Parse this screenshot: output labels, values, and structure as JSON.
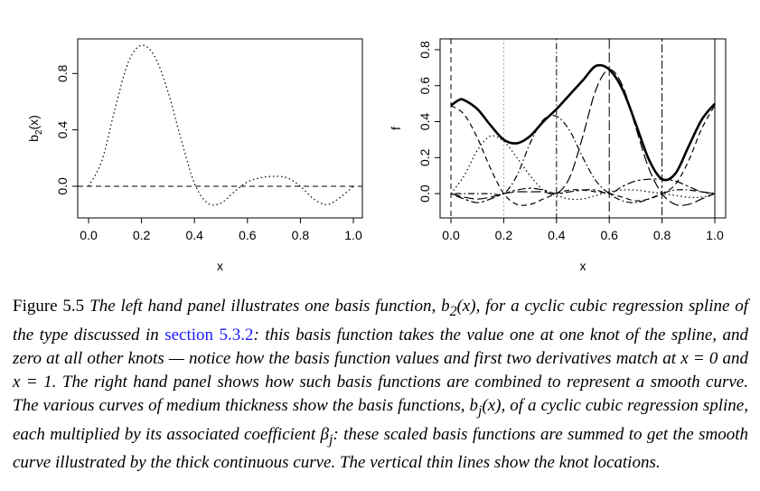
{
  "chart_data": [
    {
      "type": "line",
      "panel": "left",
      "xlabel": "x",
      "ylabel": "b2(x)",
      "xlim": [
        0,
        1
      ],
      "ylim": [
        -0.18,
        1.02
      ],
      "xticks": [
        "0.0",
        "0.2",
        "0.4",
        "0.6",
        "0.8",
        "1.0"
      ],
      "yticks": [
        "0.0",
        "0.4",
        "0.8"
      ],
      "reference_line": {
        "y": 0,
        "style": "dashed"
      },
      "series": [
        {
          "style": "dotted",
          "x": [
            0,
            0.05,
            0.1,
            0.15,
            0.2,
            0.25,
            0.3,
            0.35,
            0.4,
            0.45,
            0.5,
            0.55,
            0.6,
            0.65,
            0.7,
            0.75,
            0.8,
            0.85,
            0.9,
            0.95,
            1.0
          ],
          "y": [
            0,
            0.18,
            0.55,
            0.88,
            1.0,
            0.92,
            0.67,
            0.33,
            0.02,
            -0.12,
            -0.12,
            -0.04,
            0.03,
            0.06,
            0.07,
            0.06,
            0.0,
            -0.09,
            -0.13,
            -0.08,
            0
          ]
        }
      ]
    },
    {
      "type": "line",
      "panel": "right",
      "xlabel": "x",
      "ylabel": "f",
      "xlim": [
        0,
        1
      ],
      "ylim": [
        -0.1,
        0.84
      ],
      "xticks": [
        "0.0",
        "0.2",
        "0.4",
        "0.6",
        "0.8",
        "1.0"
      ],
      "yticks": [
        "0.0",
        "0.2",
        "0.4",
        "0.6",
        "0.8"
      ],
      "knots": [
        {
          "x": 0.0,
          "style": "dashed"
        },
        {
          "x": 0.2,
          "style": "dotted"
        },
        {
          "x": 0.4,
          "style": "dotdash"
        },
        {
          "x": 0.6,
          "style": "longdash"
        },
        {
          "x": 0.8,
          "style": "twodash"
        },
        {
          "x": 1.0,
          "style": "solid"
        }
      ],
      "series": [
        {
          "style": "dashed",
          "x": [
            0,
            0.05,
            0.1,
            0.15,
            0.2,
            0.25,
            0.3,
            0.35,
            0.4,
            0.45,
            0.5,
            0.55,
            0.6,
            0.65,
            0.7,
            0.75,
            0.8,
            0.85,
            0.9,
            0.95,
            1.0
          ],
          "y": [
            0.49,
            0.44,
            0.31,
            0.14,
            0.0,
            -0.06,
            -0.06,
            -0.03,
            0.0,
            0.02,
            0.02,
            0.01,
            0.0,
            -0.02,
            -0.04,
            -0.03,
            0.0,
            0.05,
            0.18,
            0.36,
            0.49
          ]
        },
        {
          "style": "dotted",
          "x": [
            0,
            0.05,
            0.1,
            0.15,
            0.2,
            0.25,
            0.3,
            0.35,
            0.4,
            0.45,
            0.5,
            0.55,
            0.6,
            0.65,
            0.7,
            0.75,
            0.8,
            0.85,
            0.9,
            0.95,
            1.0
          ],
          "y": [
            0.0,
            0.1,
            0.24,
            0.32,
            0.29,
            0.2,
            0.1,
            0.02,
            -0.01,
            -0.03,
            -0.03,
            -0.01,
            0.01,
            0.02,
            0.02,
            0.01,
            0.0,
            -0.01,
            -0.02,
            -0.02,
            0.0
          ]
        },
        {
          "style": "dotdash",
          "x": [
            0,
            0.05,
            0.1,
            0.15,
            0.2,
            0.25,
            0.3,
            0.35,
            0.4,
            0.45,
            0.5,
            0.55,
            0.6,
            0.65,
            0.7,
            0.75,
            0.8,
            0.85,
            0.9,
            0.95,
            1.0
          ],
          "y": [
            0.0,
            0.0,
            0.0,
            0.0,
            0.0,
            0.1,
            0.28,
            0.41,
            0.43,
            0.35,
            0.2,
            0.07,
            0.0,
            -0.04,
            -0.05,
            -0.03,
            0.0,
            0.02,
            0.02,
            0.01,
            0.0
          ]
        },
        {
          "style": "longdash",
          "x": [
            0,
            0.05,
            0.1,
            0.15,
            0.2,
            0.25,
            0.3,
            0.35,
            0.4,
            0.45,
            0.5,
            0.55,
            0.6,
            0.65,
            0.7,
            0.75,
            0.8,
            0.85,
            0.9,
            0.95,
            1.0
          ],
          "y": [
            0.0,
            -0.02,
            -0.03,
            -0.02,
            0.0,
            0.01,
            0.01,
            0.01,
            0.0,
            0.09,
            0.32,
            0.58,
            0.69,
            0.6,
            0.37,
            0.14,
            0.0,
            -0.06,
            -0.06,
            -0.03,
            0.0
          ]
        },
        {
          "style": "twodash",
          "x": [
            0,
            0.05,
            0.1,
            0.15,
            0.2,
            0.25,
            0.3,
            0.35,
            0.4,
            0.45,
            0.5,
            0.55,
            0.6,
            0.65,
            0.7,
            0.75,
            0.8,
            0.85,
            0.9,
            0.95,
            1.0
          ],
          "y": [
            0.0,
            -0.03,
            -0.05,
            -0.03,
            0.0,
            0.02,
            0.03,
            0.02,
            0.0,
            0.01,
            0.02,
            0.02,
            0.0,
            0.04,
            0.07,
            0.08,
            0.08,
            0.07,
            0.04,
            0.01,
            0.0
          ]
        },
        {
          "style": "thick-solid",
          "x": [
            0,
            0.03,
            0.05,
            0.1,
            0.15,
            0.2,
            0.25,
            0.3,
            0.35,
            0.4,
            0.45,
            0.5,
            0.55,
            0.6,
            0.65,
            0.7,
            0.75,
            0.8,
            0.85,
            0.9,
            0.95,
            1.0
          ],
          "y": [
            0.49,
            0.52,
            0.52,
            0.47,
            0.38,
            0.3,
            0.28,
            0.32,
            0.4,
            0.47,
            0.55,
            0.63,
            0.71,
            0.69,
            0.58,
            0.39,
            0.19,
            0.08,
            0.11,
            0.26,
            0.41,
            0.5
          ]
        }
      ]
    }
  ],
  "caption": {
    "label": "Figure 5.5",
    "part1": "The left hand panel illustrates one basis function, ",
    "b2x": "b",
    "b2sub": "2",
    "b2arg": "(x)",
    "part2": ", for a cyclic cubic regression spline of the type discussed in ",
    "link": "section 5.3.2",
    "part3": ": this basis function takes the value one at one knot of the spline, and zero at all other knots — notice how the basis function values and first two derivatives match at ",
    "eq1": "x = 0",
    "part4": " and ",
    "eq2": "x = 1",
    "part5": ". The right hand panel shows how such basis functions are combined to represent a smooth curve. The various curves of medium thickness show the basis functions, ",
    "bj": "b",
    "bjsub": "j",
    "bjarg": "(x)",
    "part6": ", of a cyclic cubic regression spline, each multiplied by its associated coefficient ",
    "beta": "β",
    "betasub": "j",
    "part7": ": these scaled basis functions are summed to get the smooth curve illustrated by the thick continuous curve. The vertical thin lines show the knot locations."
  }
}
